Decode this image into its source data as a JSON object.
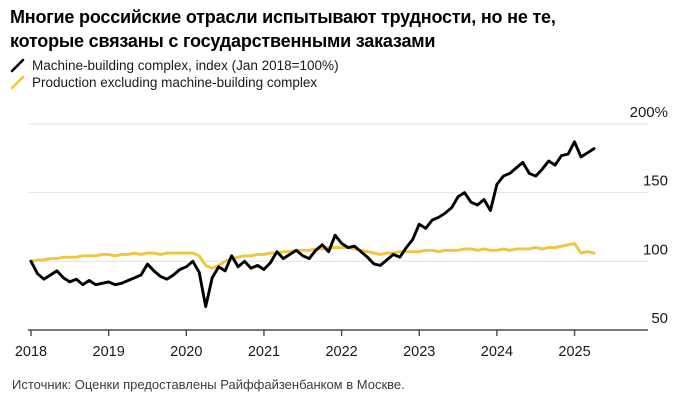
{
  "title": {
    "line1": "Многие российские отрасли испытывают трудности, но не те,",
    "line2": "которые связаны с государственными заказами"
  },
  "legend": [
    {
      "label": "Machine-building complex, index (Jan 2018=100%)",
      "color": "#000000"
    },
    {
      "label": "Production excluding machine-building complex",
      "color": "#f0c540"
    }
  ],
  "source": "Источник: Оценки предоставлены Райффайзенбанком в Москве.",
  "colors": {
    "grid": "#e2e2e2",
    "axis": "#4a4a4a",
    "tick_text": "#1a1a1a",
    "background": "#ffffff"
  },
  "chart_data": {
    "type": "line",
    "frequency": "monthly",
    "x_start": "Jan 2018",
    "x_end": "Apr 2025",
    "x_tick_labels": [
      "2018",
      "2019",
      "2020",
      "2021",
      "2022",
      "2023",
      "2024",
      "2025"
    ],
    "y_ticks": [
      50,
      100,
      150,
      200
    ],
    "y_tick_labels": [
      "50",
      "100",
      "150",
      "200%"
    ],
    "ylim": [
      50,
      205
    ],
    "grid": "horizontal",
    "legend_position": "top-left",
    "series": [
      {
        "name": "Machine-building complex, index (Jan 2018=100%)",
        "color": "#000000",
        "values": [
          100,
          91,
          87,
          90,
          93,
          88,
          85,
          87,
          83,
          86,
          83,
          84,
          85,
          83,
          84,
          86,
          88,
          90,
          98,
          93,
          89,
          87,
          90,
          94,
          96,
          100,
          92,
          67,
          88,
          96,
          93,
          104,
          96,
          100,
          95,
          97,
          94,
          99,
          107,
          102,
          105,
          108,
          104,
          102,
          108,
          112,
          107,
          119,
          113,
          110,
          111,
          107,
          103,
          98,
          97,
          101,
          105,
          103,
          110,
          116,
          127,
          124,
          130,
          132,
          135,
          139,
          147,
          150,
          143,
          141,
          145,
          137,
          156,
          162,
          164,
          168,
          172,
          164,
          162,
          167,
          173,
          170,
          177,
          178,
          187,
          176,
          179,
          182
        ]
      },
      {
        "name": "Production excluding machine-building complex",
        "color": "#f0c540",
        "values": [
          100,
          101,
          101,
          102,
          102,
          103,
          103,
          103,
          104,
          104,
          104,
          105,
          105,
          104,
          105,
          105,
          106,
          105,
          106,
          106,
          105,
          106,
          106,
          106,
          106,
          106,
          104,
          97,
          95,
          97,
          100,
          102,
          103,
          104,
          104,
          105,
          105,
          106,
          106,
          107,
          107,
          108,
          108,
          108,
          109,
          109,
          110,
          110,
          110,
          110,
          109,
          108,
          107,
          106,
          105,
          106,
          106,
          107,
          107,
          107,
          107,
          108,
          108,
          107,
          108,
          108,
          108,
          109,
          109,
          108,
          109,
          108,
          108,
          109,
          108,
          109,
          109,
          109,
          110,
          109,
          110,
          110,
          111,
          112,
          113,
          106,
          107,
          106
        ]
      }
    ]
  }
}
